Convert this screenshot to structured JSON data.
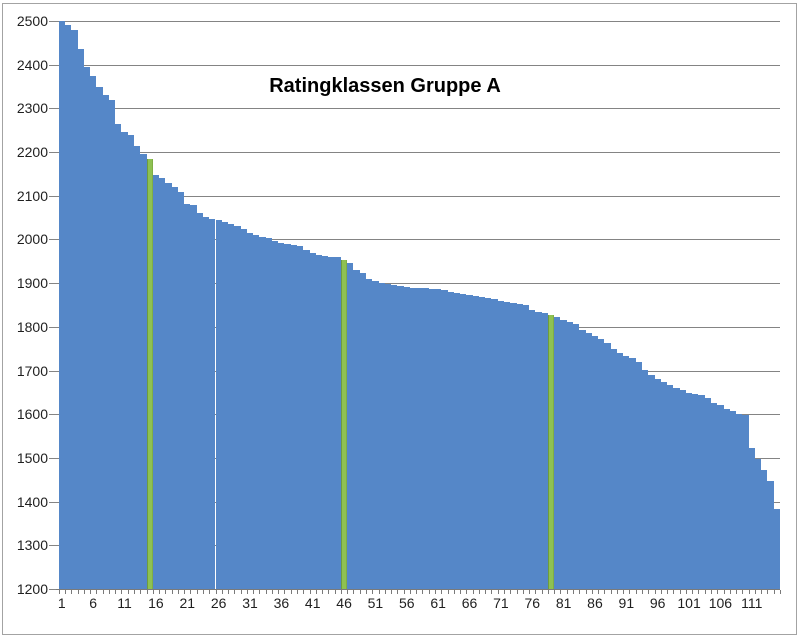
{
  "chart_data": {
    "type": "bar",
    "title": "Ratingklassen Gruppe A",
    "n_bars": 115,
    "values": [
      2500,
      2490,
      2480,
      2437,
      2395,
      2375,
      2350,
      2330,
      2320,
      2265,
      2245,
      2240,
      2215,
      2195,
      2185,
      2148,
      2141,
      2130,
      2120,
      2108,
      2082,
      2078,
      2061,
      2052,
      2047,
      2045,
      2041,
      2035,
      2030,
      2024,
      2015,
      2010,
      2006,
      2004,
      1996,
      1992,
      1990,
      1988,
      1984,
      1976,
      1970,
      1965,
      1963,
      1961,
      1959,
      1954,
      1945,
      1929,
      1924,
      1910,
      1905,
      1901,
      1899,
      1896,
      1894,
      1892,
      1890,
      1889,
      1888,
      1887,
      1886,
      1884,
      1880,
      1877,
      1875,
      1873,
      1871,
      1869,
      1865,
      1863,
      1860,
      1857,
      1855,
      1853,
      1850,
      1839,
      1834,
      1831,
      1828,
      1822,
      1815,
      1812,
      1806,
      1792,
      1785,
      1779,
      1773,
      1763,
      1749,
      1741,
      1734,
      1728,
      1719,
      1701,
      1690,
      1681,
      1674,
      1668,
      1660,
      1655,
      1649,
      1646,
      1644,
      1638,
      1626,
      1620,
      1613,
      1607,
      1601,
      1599,
      1522,
      1497,
      1472,
      1448,
      1382
    ],
    "highlighted_bars": [
      15,
      46,
      79
    ],
    "xtick_labels": [
      "1",
      "6",
      "11",
      "16",
      "21",
      "26",
      "31",
      "36",
      "41",
      "46",
      "51",
      "56",
      "61",
      "66",
      "71",
      "76",
      "81",
      "86",
      "91",
      "96",
      "101",
      "106",
      "111"
    ],
    "ytick_labels": [
      "2500",
      "2400",
      "2300",
      "2200",
      "2100",
      "2000",
      "1900",
      "1800",
      "1700",
      "1600",
      "1500",
      "1400",
      "1300",
      "1200"
    ],
    "ylim": [
      1200,
      2500
    ],
    "grid": true,
    "legend": null,
    "colors": {
      "bar": "#5587c8",
      "highlight": "#8ec152",
      "gridline": "#848484",
      "axis": "#7a7a7a",
      "text": "#1f1f1f",
      "title": "#000000",
      "background": "#ffffff",
      "frame_border": "#a3a3a3"
    }
  }
}
